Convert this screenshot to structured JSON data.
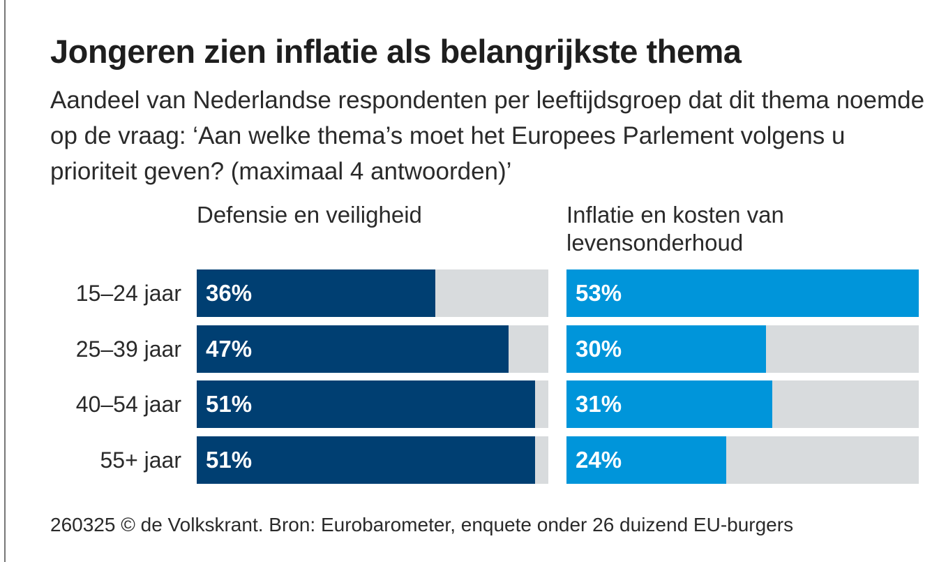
{
  "title": "Jongeren zien inflatie als belangrijkste thema",
  "subtitle": "Aandeel van Nederlandse respondenten per leeftijdsgroep dat dit thema noemde op de vraag: ‘Aan welke thema’s moet het Europees Parlement volgens u prioriteit geven? (maximaal 4 antwoorden)’",
  "footer": "260325 © de Volkskrant. Bron: Eurobarometer, enquete onder 26 duizend EU-burgers",
  "colors": {
    "defensie": "#003f72",
    "inflatie": "#0095da",
    "track": "#d8dbdd"
  },
  "chart_data": {
    "type": "bar",
    "orientation": "horizontal",
    "title": "Jongeren zien inflatie als belangrijkste thema",
    "categories": [
      "15–24 jaar",
      "25–39 jaar",
      "40–54 jaar",
      "55+ jaar"
    ],
    "xlim": [
      0,
      53
    ],
    "series": [
      {
        "name": "Defensie en veiligheid",
        "values": [
          36,
          47,
          51,
          51
        ],
        "labels": [
          "36%",
          "47%",
          "51%",
          "51%"
        ]
      },
      {
        "name": "Inflatie en kosten van levensonderhoud",
        "values": [
          53,
          30,
          31,
          24
        ],
        "labels": [
          "53%",
          "30%",
          "31%",
          "24%"
        ]
      }
    ]
  }
}
